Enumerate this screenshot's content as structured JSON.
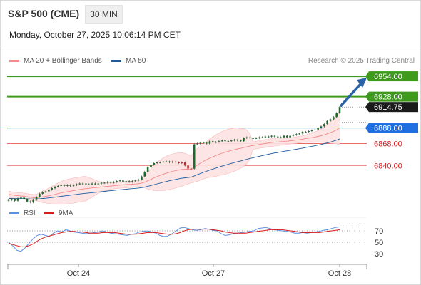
{
  "header": {
    "instrument": "S&P 500 (CME)",
    "timeframe": "30 MIN",
    "datetime": "Monday, October 27, 2025 10:06:14 PM CET"
  },
  "legend": {
    "bollinger_label": "MA 20 + Bollinger Bands",
    "ma50_label": "MA 50",
    "copyright": "Research © 2025 Trading Central",
    "rsi_label": "RSI",
    "rsi_ma_label": "9MA"
  },
  "colors": {
    "resistance": "#3d9a1c",
    "support": "#e96b6b",
    "pivot": "#1f6fe0",
    "bollinger_line": "#f48a8a",
    "bollinger_fill": "#fde2e2",
    "ma50": "#1e5b9c",
    "candle": "#1d6b2a",
    "arrow": "#2a63a8",
    "rsi": "#5b8fe0",
    "rsi_ma": "#d91c1c"
  },
  "chart_data": [
    {
      "type": "candlestick",
      "title": "S&P 500 (CME) 30 MIN",
      "x_ticks": [
        "Oct 24",
        "Oct 27",
        "Oct 28"
      ],
      "y_range": [
        6792,
        6965
      ],
      "levels": [
        {
          "kind": "resistance",
          "value": 6954.0,
          "label": "6954.00"
        },
        {
          "kind": "resistance",
          "value": 6928.0,
          "label": "6928.00"
        },
        {
          "kind": "pivot",
          "value": 6888.0,
          "label": "6888.00"
        },
        {
          "kind": "support",
          "value": 6868.0,
          "label": "6868.00"
        },
        {
          "kind": "support",
          "value": 6840.0,
          "label": "6840.00"
        }
      ],
      "last_price": {
        "value": 6914.75,
        "label": "6914.75"
      },
      "close": [
        6796,
        6797,
        6795,
        6798,
        6799,
        6797,
        6794,
        6793,
        6796,
        6800,
        6804,
        6806,
        6807,
        6809,
        6811,
        6813,
        6814,
        6815,
        6814,
        6815,
        6814,
        6815,
        6816,
        6817,
        6817,
        6816,
        6816,
        6817,
        6816,
        6817,
        6818,
        6818,
        6819,
        6818,
        6819,
        6820,
        6821,
        6819,
        6820,
        6819,
        6820,
        6821,
        6822,
        6826,
        6832,
        6838,
        6841,
        6843,
        6844,
        6844,
        6845,
        6845,
        6844,
        6845,
        6844,
        6843,
        6844,
        6840,
        6836,
        6836,
        6867,
        6868,
        6869,
        6869,
        6868,
        6871,
        6870,
        6870,
        6871,
        6872,
        6871,
        6871,
        6872,
        6873,
        6872,
        6871,
        6875,
        6876,
        6875,
        6875,
        6875,
        6876,
        6876,
        6877,
        6877,
        6878,
        6877,
        6876,
        6876,
        6878,
        6876,
        6878,
        6879,
        6880,
        6881,
        6883,
        6883,
        6884,
        6885,
        6886,
        6888,
        6890,
        6893,
        6897,
        6899,
        6902,
        6907,
        6914.75
      ],
      "ma20_start": 6804,
      "ma20_end": 6888,
      "ma50_start": 6798,
      "ma50_end": 6874
    },
    {
      "type": "line",
      "title": "RSI",
      "y_ticks": [
        70,
        50,
        30
      ],
      "y_range": [
        15,
        85
      ],
      "series": [
        {
          "name": "RSI",
          "values": [
            50,
            44,
            36,
            34,
            40,
            48,
            56,
            62,
            64,
            62,
            60,
            66,
            70,
            68,
            72,
            70,
            68,
            67,
            66,
            65,
            66,
            67,
            68,
            70,
            68,
            66,
            65,
            64,
            63,
            62,
            64,
            65,
            68,
            69,
            70,
            68,
            66,
            62,
            60,
            61,
            65,
            70,
            75,
            76,
            74,
            72,
            71,
            72,
            74,
            73,
            71,
            70,
            65,
            62,
            63,
            65,
            66,
            67,
            68,
            69,
            70,
            74,
            75,
            76,
            74,
            72,
            71,
            70,
            69,
            68,
            66,
            66,
            67,
            66,
            67,
            68,
            69,
            71,
            72,
            74,
            76,
            77
          ]
        },
        {
          "name": "9MA",
          "values": [
            48,
            46,
            44,
            42,
            42,
            44,
            47,
            52,
            56,
            59,
            61,
            63,
            65,
            67,
            68,
            69,
            69,
            68,
            68,
            67,
            66,
            66,
            66,
            67,
            67,
            67,
            67,
            66,
            65,
            64,
            64,
            64,
            65,
            66,
            67,
            67,
            67,
            66,
            65,
            64,
            64,
            65,
            67,
            70,
            72,
            73,
            73,
            73,
            73,
            73,
            72,
            71,
            70,
            68,
            67,
            66,
            66,
            66,
            66,
            67,
            68,
            69,
            70,
            71,
            72,
            72,
            72,
            72,
            71,
            70,
            69,
            68,
            67,
            67,
            67,
            67,
            67,
            68,
            69,
            70,
            71,
            72
          ]
        }
      ]
    }
  ]
}
